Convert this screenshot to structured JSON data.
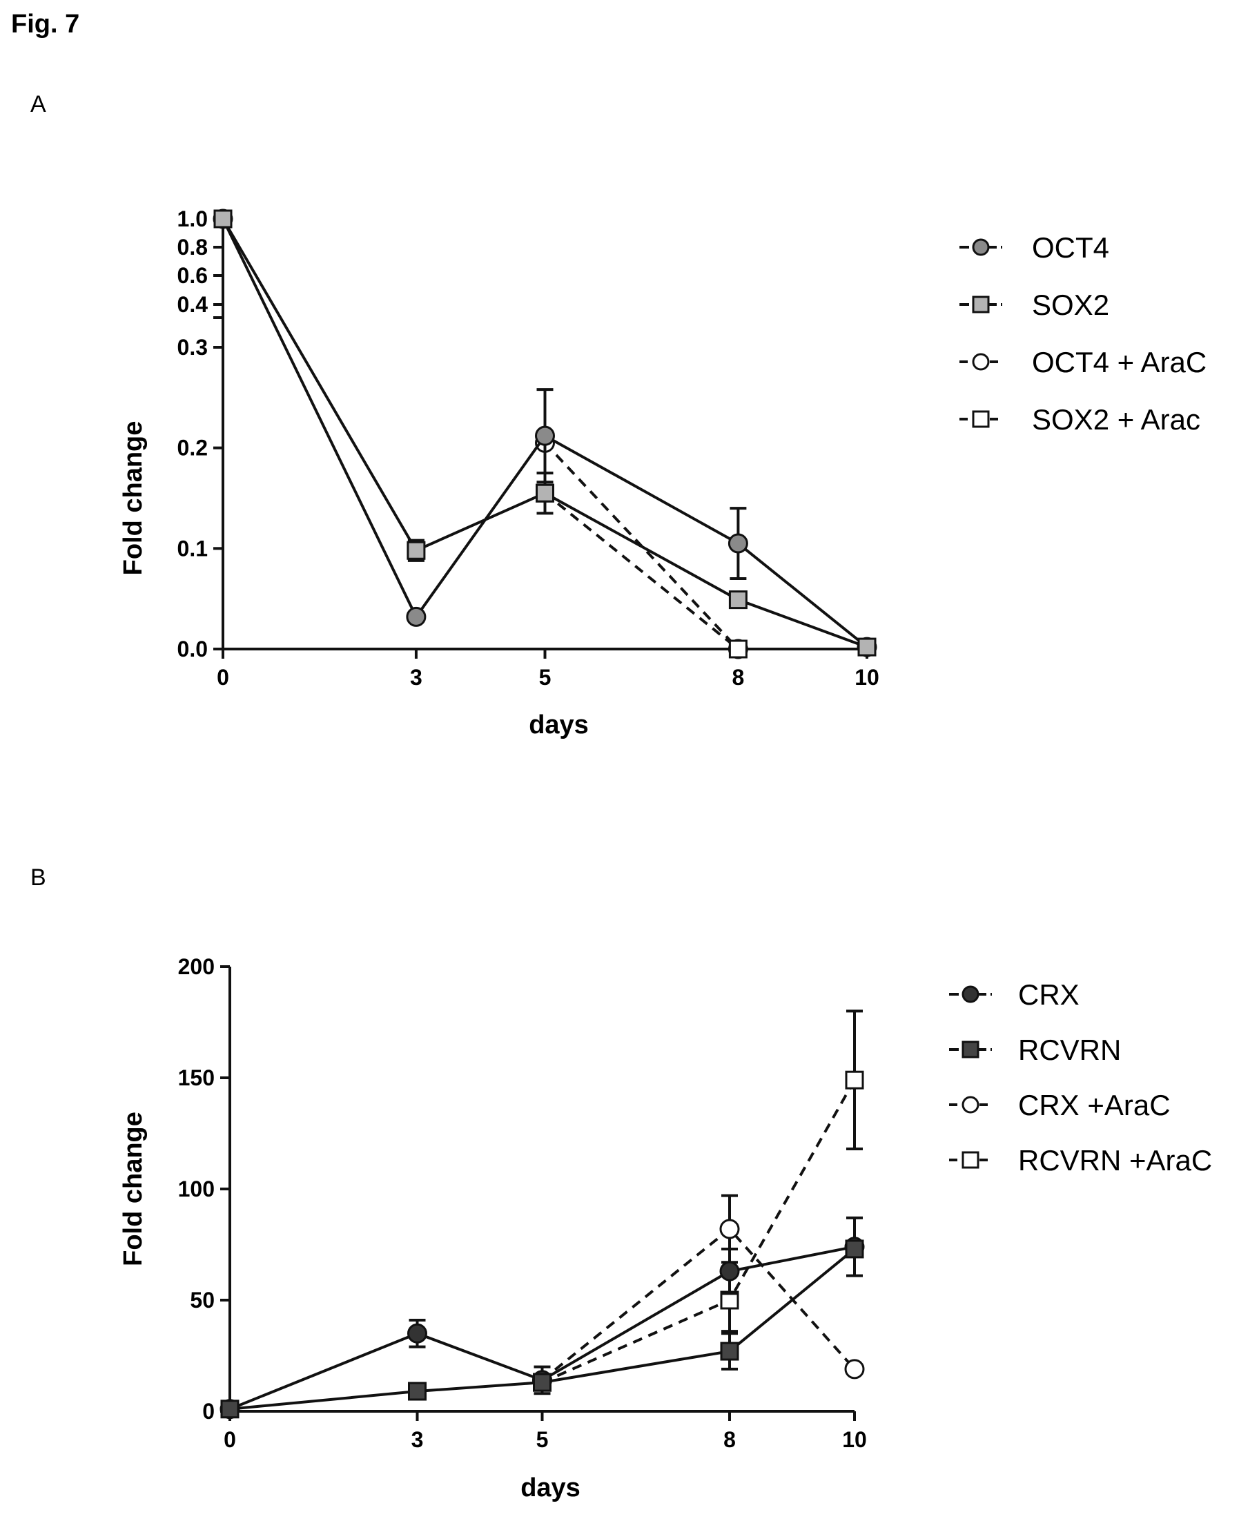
{
  "figure_title": "Fig. 7",
  "panels": {
    "a_label": "A",
    "b_label": "B"
  },
  "chart_data": [
    {
      "type": "line",
      "panel": "A",
      "xlabel": "days",
      "ylabel": "Fold change",
      "x_ticks": [
        0,
        3,
        5,
        8,
        10
      ],
      "y_ticks_lower": [
        0.0,
        0.1,
        0.2,
        0.3
      ],
      "y_ticks_upper": [
        0.4,
        0.6,
        0.8,
        1.0
      ],
      "y_tick_labels_lower": [
        "0.0",
        "0.1",
        "0.2",
        "0.3"
      ],
      "y_tick_labels_upper": [
        "0.4",
        "0.6",
        "0.8",
        "1.0"
      ],
      "y_axis_break": [
        0.3,
        0.33
      ],
      "ylim": [
        0,
        1.0
      ],
      "grid": false,
      "legend_position": "right",
      "series": [
        {
          "name": "OCT4",
          "color": "#8a8a8a",
          "marker": "circle",
          "filled": true,
          "dashed": false,
          "x": [
            0,
            3,
            5,
            8,
            10
          ],
          "y": [
            1.0,
            0.032,
            0.212,
            0.105,
            0.002
          ],
          "err": [
            0,
            0,
            0.046,
            0.035,
            0
          ]
        },
        {
          "name": "SOX2",
          "color": "#b3b3b3",
          "marker": "square",
          "filled": true,
          "dashed": false,
          "x": [
            0,
            3,
            5,
            8,
            10
          ],
          "y": [
            1.0,
            0.098,
            0.155,
            0.049,
            0.002
          ],
          "err": [
            0,
            0.01,
            0.02,
            0,
            0
          ]
        },
        {
          "name": "OCT4 + AraC",
          "color": "#ffffff",
          "marker": "circle",
          "filled": false,
          "dashed": true,
          "x": [
            5,
            8
          ],
          "y": [
            0.205,
            0.0
          ],
          "err": [
            0,
            0
          ]
        },
        {
          "name": "SOX2 + Arac",
          "color": "#ffffff",
          "marker": "square",
          "filled": false,
          "dashed": true,
          "x": [
            5,
            8
          ],
          "y": [
            0.155,
            0.0
          ],
          "err": [
            0,
            0
          ]
        }
      ]
    },
    {
      "type": "line",
      "panel": "B",
      "xlabel": "days",
      "ylabel": "Fold change",
      "x_ticks": [
        0,
        3,
        5,
        8,
        10
      ],
      "y_ticks": [
        0,
        50,
        100,
        150,
        200
      ],
      "ylim": [
        0,
        200
      ],
      "grid": false,
      "legend_position": "right",
      "series": [
        {
          "name": "CRX",
          "color": "#333333",
          "marker": "circle",
          "filled": true,
          "dashed": false,
          "x": [
            0,
            3,
            5,
            8,
            10
          ],
          "y": [
            1,
            35,
            14,
            63,
            74
          ],
          "err": [
            0,
            6,
            6,
            10,
            13
          ]
        },
        {
          "name": "RCVRN",
          "color": "#444444",
          "marker": "square",
          "filled": true,
          "dashed": false,
          "x": [
            0,
            3,
            5,
            8,
            10
          ],
          "y": [
            1,
            9,
            13,
            27,
            73
          ],
          "err": [
            0,
            0,
            0,
            8,
            0
          ]
        },
        {
          "name": "CRX +AraC",
          "color": "#ffffff",
          "marker": "circle",
          "filled": false,
          "dashed": true,
          "x": [
            5,
            8,
            10
          ],
          "y": [
            14,
            82,
            19
          ],
          "err": [
            0,
            15,
            0
          ]
        },
        {
          "name": "RCVRN +AraC",
          "color": "#ffffff",
          "marker": "square",
          "filled": false,
          "dashed": true,
          "x": [
            5,
            8,
            10
          ],
          "y": [
            13,
            50,
            149
          ],
          "err": [
            0,
            14,
            31
          ]
        }
      ]
    }
  ]
}
